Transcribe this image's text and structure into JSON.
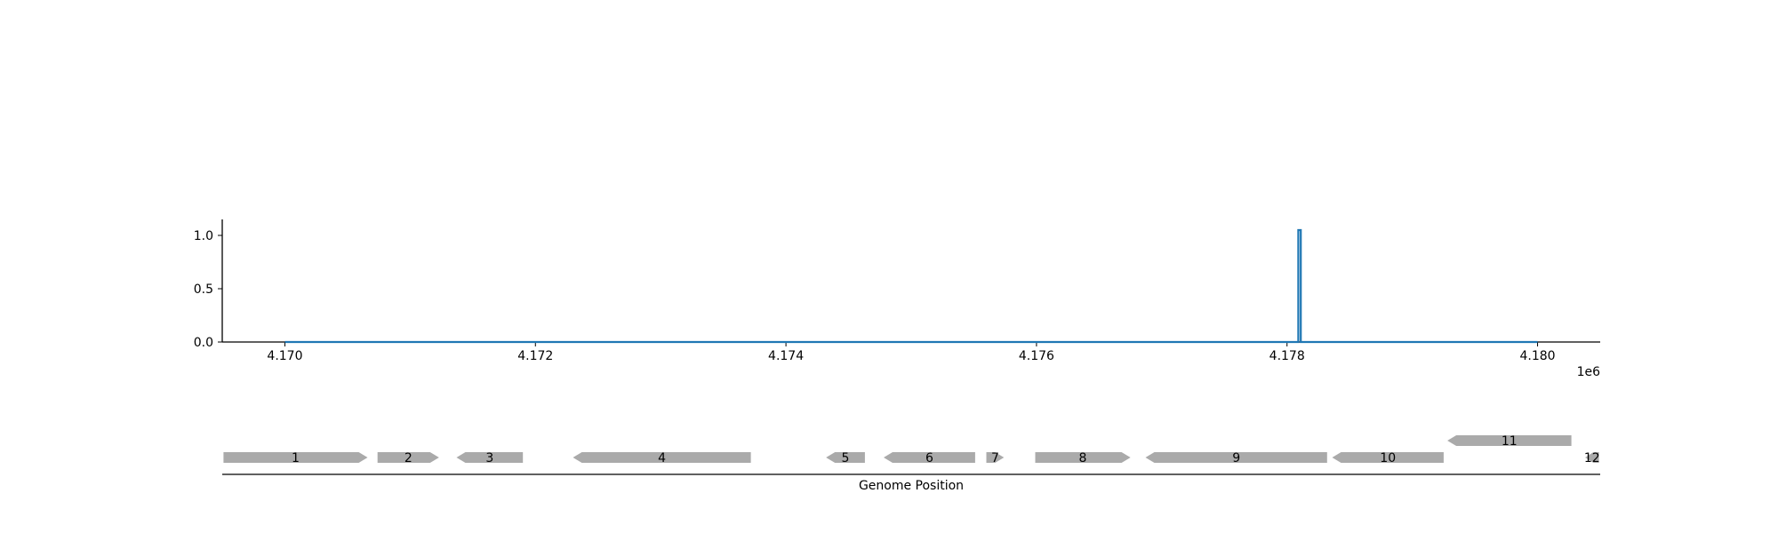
{
  "chart_data": [
    {
      "type": "line",
      "x_multiplier_label": "1e6",
      "xlim": [
        4169500,
        4180500
      ],
      "ylim": [
        0,
        1.15
      ],
      "x_ticks": [
        4170000,
        4172000,
        4174000,
        4176000,
        4178000,
        4180000
      ],
      "x_tick_labels": [
        "4.170",
        "4.172",
        "4.174",
        "4.176",
        "4.178",
        "4.180"
      ],
      "y_ticks": [
        0.0,
        0.5,
        1.0
      ],
      "y_tick_labels": [
        "0.0",
        "0.5",
        "1.0"
      ],
      "color": "#1f77b4",
      "grid": false,
      "series": [
        {
          "x": [
            4170000,
            4178090,
            4178090,
            4178110,
            4178110,
            4180000
          ],
          "values": [
            0,
            0,
            1.05,
            1.05,
            0,
            0
          ]
        }
      ]
    },
    {
      "type": "gene-track",
      "xlabel": "Genome Position",
      "xlim": [
        4169500,
        4180500
      ],
      "color": "#aaaaaa",
      "genes": [
        {
          "label": "1",
          "start": 4169510,
          "end": 4170660,
          "strand": "+",
          "row": 0
        },
        {
          "label": "2",
          "start": 4170740,
          "end": 4171230,
          "strand": "+",
          "row": 0
        },
        {
          "label": "3",
          "start": 4171370,
          "end": 4171900,
          "strand": "-",
          "row": 0
        },
        {
          "label": "4",
          "start": 4172300,
          "end": 4173720,
          "strand": "-",
          "row": 0
        },
        {
          "label": "5",
          "start": 4174320,
          "end": 4174630,
          "strand": "-",
          "row": 0
        },
        {
          "label": "6",
          "start": 4174780,
          "end": 4175510,
          "strand": "-",
          "row": 0
        },
        {
          "label": "7",
          "start": 4175600,
          "end": 4175740,
          "strand": "+",
          "row": 0
        },
        {
          "label": "8",
          "start": 4175990,
          "end": 4176750,
          "strand": "+",
          "row": 0
        },
        {
          "label": "9",
          "start": 4176870,
          "end": 4178320,
          "strand": "-",
          "row": 0
        },
        {
          "label": "10",
          "start": 4178360,
          "end": 4179250,
          "strand": "-",
          "row": 0
        },
        {
          "label": "11",
          "start": 4179280,
          "end": 4180270,
          "strand": "-",
          "row": 1
        },
        {
          "label": "12",
          "start": 4180380,
          "end": 4180490,
          "strand": "-",
          "row": 0
        }
      ]
    }
  ]
}
